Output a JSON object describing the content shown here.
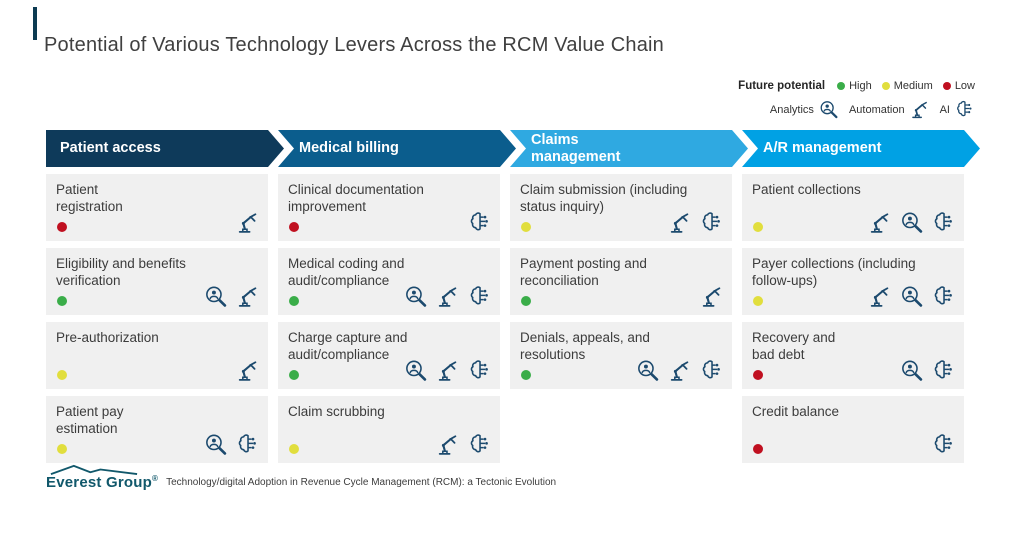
{
  "page": {
    "title": "Potential of Various Technology Levers Across the RCM Value Chain",
    "accent_bar_color": "#0d3b52"
  },
  "legend": {
    "future_potential_label": "Future potential",
    "levels": [
      {
        "label": "High",
        "color": "#3aad49"
      },
      {
        "label": "Medium",
        "color": "#e1de3d"
      },
      {
        "label": "Low",
        "color": "#c01020"
      }
    ],
    "levers": [
      {
        "label": "Analytics",
        "icon": "analytics"
      },
      {
        "label": "Automation",
        "icon": "automation"
      },
      {
        "label": "AI",
        "icon": "ai"
      }
    ]
  },
  "potential_colors": {
    "High": "#3aad49",
    "Medium": "#e1de3d",
    "Low": "#c01020"
  },
  "theme": {
    "icon_color": "#1c4a6e",
    "cell_background": "#f0f0f0"
  },
  "board": {
    "columns": [
      {
        "header": "Patient access",
        "color": "#0e3a5a",
        "cells": [
          {
            "label": "Patient\nregistration",
            "potential": "Low",
            "icons": [
              "automation"
            ]
          },
          {
            "label": "Eligibility and benefits\nverification",
            "potential": "High",
            "icons": [
              "analytics",
              "automation"
            ]
          },
          {
            "label": "Pre-authorization",
            "potential": "Medium",
            "icons": [
              "automation"
            ]
          },
          {
            "label": "Patient pay\nestimation",
            "potential": "Medium",
            "icons": [
              "analytics",
              "ai"
            ]
          }
        ]
      },
      {
        "header": "Medical billing",
        "color": "#0b5d8d",
        "cells": [
          {
            "label": "Clinical documentation\nimprovement",
            "potential": "Low",
            "icons": [
              "ai"
            ]
          },
          {
            "label": "Medical coding and\naudit/compliance",
            "potential": "High",
            "icons": [
              "analytics",
              "automation",
              "ai"
            ]
          },
          {
            "label": "Charge capture and\naudit/compliance",
            "potential": "High",
            "icons": [
              "analytics",
              "automation",
              "ai"
            ]
          },
          {
            "label": "Claim scrubbing",
            "potential": "Medium",
            "icons": [
              "automation",
              "ai"
            ]
          }
        ]
      },
      {
        "header": "Claims\nmanagement",
        "color": "#2fa9e1",
        "cells": [
          {
            "label": "Claim submission (including\nstatus inquiry)",
            "potential": "Medium",
            "icons": [
              "automation",
              "ai"
            ]
          },
          {
            "label": "Payment posting and\nreconciliation",
            "potential": "High",
            "icons": [
              "automation"
            ]
          },
          {
            "label": "Denials, appeals, and\nresolutions",
            "potential": "High",
            "icons": [
              "analytics",
              "automation",
              "ai"
            ]
          }
        ]
      },
      {
        "header": "A/R management",
        "color": "#00a1e4",
        "cells": [
          {
            "label": "Patient collections",
            "potential": "Medium",
            "icons": [
              "automation",
              "analytics",
              "ai"
            ]
          },
          {
            "label": "Payer collections (including\nfollow-ups)",
            "potential": "Medium",
            "icons": [
              "automation",
              "analytics",
              "ai"
            ]
          },
          {
            "label": "Recovery and\nbad debt",
            "potential": "Low",
            "icons": [
              "analytics",
              "ai"
            ]
          },
          {
            "label": "Credit balance",
            "potential": "Low",
            "icons": [
              "ai"
            ]
          }
        ]
      }
    ]
  },
  "footer": {
    "brand": "Everest Group",
    "registered_mark": "®",
    "caption": "Technology/digital Adoption in Revenue Cycle Management (RCM): a Tectonic Evolution"
  }
}
